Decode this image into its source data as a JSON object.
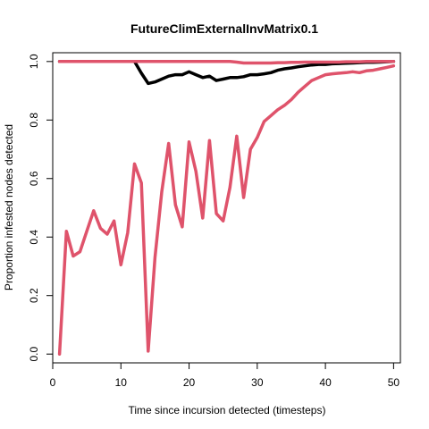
{
  "chart_data": {
    "type": "line",
    "title": "FutureClimExternalInvMatrix0.1",
    "xlabel": "Time since incursion detected (timesteps)",
    "ylabel": "Proportion infested nodes detected",
    "xlim": [
      0,
      51
    ],
    "ylim": [
      -0.03,
      1.03
    ],
    "xticks": [
      "0",
      "10",
      "20",
      "30",
      "40",
      "50"
    ],
    "yticks": [
      "0.0",
      "0.2",
      "0.4",
      "0.6",
      "0.8",
      "1.0"
    ],
    "grid": false,
    "legend": "none",
    "x": [
      1,
      2,
      3,
      4,
      5,
      6,
      7,
      8,
      9,
      10,
      11,
      12,
      13,
      14,
      15,
      16,
      17,
      18,
      19,
      20,
      21,
      22,
      23,
      24,
      25,
      26,
      27,
      28,
      29,
      30,
      31,
      32,
      33,
      34,
      35,
      36,
      37,
      38,
      39,
      40,
      41,
      42,
      43,
      44,
      45,
      46,
      47,
      48,
      49,
      50
    ],
    "series": [
      {
        "color": "#DF536B",
        "values": [
          0.0,
          0.42,
          0.335,
          0.35,
          0.42,
          0.49,
          0.43,
          0.41,
          0.455,
          0.305,
          0.415,
          0.65,
          0.585,
          0.01,
          0.33,
          0.555,
          0.72,
          0.51,
          0.435,
          0.725,
          0.625,
          0.465,
          0.73,
          0.48,
          0.455,
          0.57,
          0.745,
          0.535,
          0.7,
          0.74,
          0.795,
          0.815,
          0.835,
          0.85,
          0.87,
          0.895,
          0.915,
          0.935,
          0.945,
          0.955,
          0.958,
          0.96,
          0.962,
          0.965,
          0.962,
          0.968,
          0.97,
          0.975,
          0.98,
          0.985
        ]
      },
      {
        "color": "#000000",
        "values": [
          1.0,
          1.0,
          1.0,
          1.0,
          1.0,
          1.0,
          1.0,
          1.0,
          1.0,
          1.0,
          1.0,
          1.0,
          0.96,
          0.925,
          0.93,
          0.94,
          0.95,
          0.955,
          0.955,
          0.965,
          0.955,
          0.945,
          0.95,
          0.935,
          0.94,
          0.945,
          0.945,
          0.948,
          0.955,
          0.955,
          0.958,
          0.962,
          0.97,
          0.975,
          0.978,
          0.982,
          0.985,
          0.988,
          0.99,
          0.99,
          0.992,
          0.993,
          0.994,
          0.995,
          0.996,
          0.997,
          0.997,
          0.998,
          0.999,
          1.0
        ]
      },
      {
        "color": "#DF536B",
        "values": [
          1.0,
          1.0,
          1.0,
          1.0,
          1.0,
          1.0,
          1.0,
          1.0,
          1.0,
          1.0,
          1.0,
          1.0,
          1.0,
          1.0,
          1.0,
          1.0,
          1.0,
          1.0,
          1.0,
          1.0,
          1.0,
          1.0,
          1.0,
          1.0,
          1.0,
          1.0,
          0.998,
          0.995,
          0.995,
          0.995,
          0.995,
          0.995,
          0.996,
          0.996,
          0.997,
          0.997,
          0.998,
          0.998,
          0.998,
          0.998,
          0.998,
          0.998,
          0.999,
          0.999,
          0.999,
          1.0,
          1.0,
          1.0,
          1.0,
          1.0
        ]
      }
    ]
  }
}
